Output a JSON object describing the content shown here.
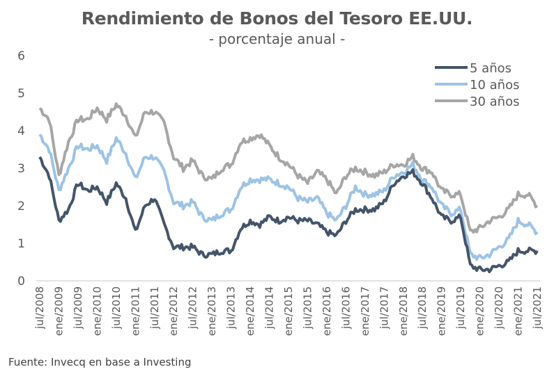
{
  "chart_data": {
    "type": "line",
    "title": "Rendimiento de Bonos del Tesoro EE.UU.",
    "subtitle": "- porcentaje anual -",
    "xlabel": "",
    "ylabel": "",
    "ylim": [
      0,
      6
    ],
    "yticks": [
      "0",
      "1",
      "2",
      "3",
      "4",
      "5",
      "6"
    ],
    "grid": false,
    "legend_position": "top-right",
    "x_tick_labels": [
      "jul/2008",
      "ene/2009",
      "jul/2009",
      "ene/2010",
      "jul/2010",
      "ene/2011",
      "jul/2011",
      "ene/2012",
      "jul/2012",
      "ene/2013",
      "jul/2013",
      "ene/2014",
      "jul/2014",
      "ene/2015",
      "jul/2015",
      "ene/2016",
      "jul/2016",
      "ene/2017",
      "jul/2017",
      "ene/2018",
      "jul/2018",
      "ene/2019",
      "jul/2019",
      "ene/2020",
      "jul/2020",
      "ene/2021",
      "jul/2021"
    ],
    "x_unit": "months since jul/2008",
    "x": [
      0,
      3,
      6,
      9,
      12,
      15,
      18,
      21,
      24,
      27,
      30,
      33,
      36,
      39,
      42,
      45,
      48,
      51,
      54,
      57,
      60,
      63,
      66,
      69,
      72,
      75,
      78,
      81,
      84,
      87,
      90,
      93,
      96,
      99,
      102,
      105,
      108,
      111,
      114,
      117,
      120,
      123,
      126,
      129,
      132,
      135,
      138,
      141,
      144,
      147,
      150,
      153,
      156
    ],
    "series": [
      {
        "name": "5 años",
        "color": "#44546A",
        "values": [
          3.3,
          2.8,
          1.6,
          1.9,
          2.6,
          2.4,
          2.5,
          2.1,
          2.6,
          2.2,
          1.3,
          2.0,
          2.2,
          1.5,
          0.9,
          0.9,
          0.9,
          0.7,
          0.7,
          0.8,
          0.8,
          1.4,
          1.6,
          1.5,
          1.7,
          1.6,
          1.7,
          1.6,
          1.6,
          1.5,
          1.3,
          1.2,
          1.6,
          1.9,
          1.9,
          1.9,
          2.1,
          2.6,
          2.8,
          2.9,
          2.6,
          2.2,
          1.7,
          1.6,
          1.7,
          0.4,
          0.3,
          0.3,
          0.4,
          0.5,
          0.8,
          0.8,
          0.8
        ]
      },
      {
        "name": "10 años",
        "color": "#9DC3E6",
        "values": [
          3.9,
          3.5,
          2.4,
          3.0,
          3.6,
          3.5,
          3.6,
          3.2,
          3.8,
          3.4,
          2.7,
          3.3,
          3.3,
          2.9,
          2.1,
          2.0,
          2.1,
          1.7,
          1.6,
          1.8,
          1.9,
          2.5,
          2.7,
          2.7,
          2.7,
          2.6,
          2.5,
          2.2,
          2.1,
          2.2,
          1.8,
          1.6,
          2.0,
          2.5,
          2.3,
          2.3,
          2.4,
          2.8,
          2.9,
          3.1,
          2.7,
          2.5,
          2.0,
          1.8,
          1.9,
          0.7,
          0.6,
          0.7,
          0.9,
          1.1,
          1.6,
          1.5,
          1.3
        ]
      },
      {
        "name": "30 años",
        "color": "#A6A6A6",
        "values": [
          4.6,
          4.3,
          2.8,
          3.7,
          4.3,
          4.3,
          4.6,
          4.3,
          4.7,
          4.4,
          3.8,
          4.5,
          4.5,
          4.2,
          3.3,
          3.0,
          3.2,
          2.8,
          2.7,
          3.0,
          3.1,
          3.7,
          3.8,
          3.9,
          3.6,
          3.3,
          3.1,
          2.8,
          2.6,
          2.9,
          2.7,
          2.3,
          2.8,
          3.0,
          2.9,
          2.8,
          2.9,
          3.1,
          3.1,
          3.3,
          3.0,
          2.9,
          2.4,
          2.3,
          2.3,
          1.3,
          1.4,
          1.6,
          1.7,
          1.9,
          2.3,
          2.3,
          2.0
        ]
      }
    ]
  },
  "footer": {
    "source": "Fuente: Invecq en base a Investing"
  }
}
